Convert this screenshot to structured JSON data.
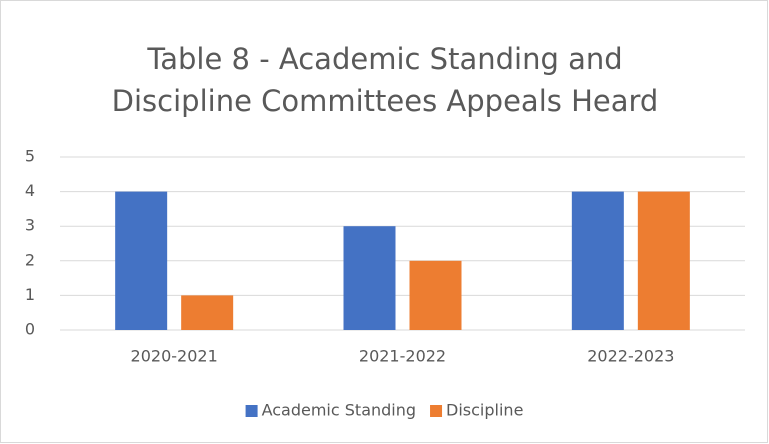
{
  "chart_data": {
    "type": "bar",
    "title": "Table 8 - Academic Standing and Discipline Committees Appeals Heard",
    "categories": [
      "2020-2021",
      "2021-2022",
      "2022-2023"
    ],
    "series": [
      {
        "name": "Academic Standing",
        "color": "#4472c4",
        "values": [
          4,
          3,
          4
        ]
      },
      {
        "name": "Discipline",
        "color": "#ed7d31",
        "values": [
          1,
          2,
          4
        ]
      }
    ],
    "ylim": [
      0,
      5
    ],
    "yticks": [
      0,
      1,
      2,
      3,
      4,
      5
    ],
    "grid": true,
    "legend": "bottom"
  }
}
